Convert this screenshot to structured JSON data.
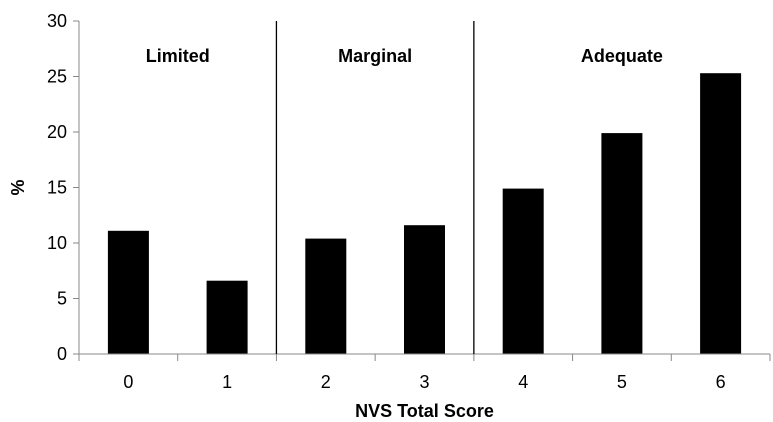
{
  "chart_data": {
    "type": "bar",
    "categories": [
      "0",
      "1",
      "2",
      "3",
      "4",
      "5",
      "6"
    ],
    "values": [
      11.1,
      6.6,
      10.4,
      11.6,
      14.9,
      19.9,
      25.3
    ],
    "title": "",
    "xlabel": "NVS Total Score",
    "ylabel": "%",
    "ylim": [
      0,
      30
    ],
    "yticks": [
      "0",
      "5",
      "10",
      "15",
      "20",
      "25",
      "30"
    ],
    "grid": false,
    "legend": "none",
    "bar_color": "#000000",
    "groups": [
      {
        "label": "Limited",
        "categories": [
          "0",
          "1"
        ]
      },
      {
        "label": "Marginal",
        "categories": [
          "2",
          "3"
        ]
      },
      {
        "label": "Adequate",
        "categories": [
          "4",
          "5",
          "6"
        ]
      }
    ]
  }
}
